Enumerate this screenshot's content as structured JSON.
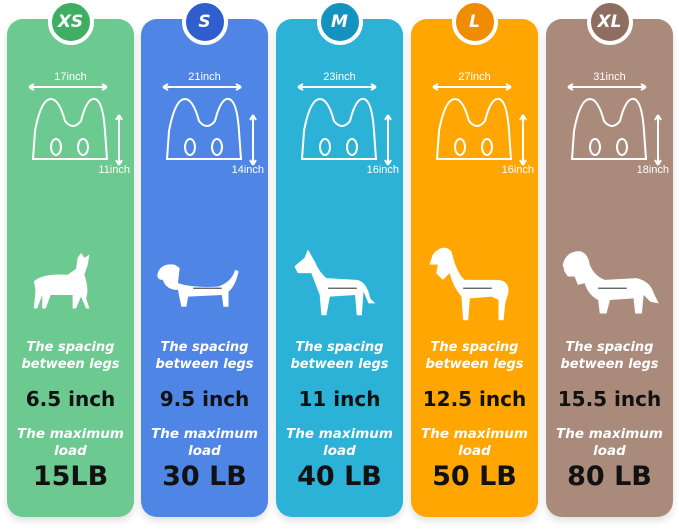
{
  "sizes": [
    {
      "size": "XS",
      "width": "17inch",
      "height": "11inch",
      "spacing_label": "The spacing between legs",
      "spacing": "6.5 inch",
      "load_label": "The maximum load",
      "load": "15LB",
      "color": "#6cc98f",
      "badge": "#3fae62",
      "animal": "cat"
    },
    {
      "size": "S",
      "width": "21inch",
      "height": "14inch",
      "spacing_label": "The spacing between legs",
      "spacing": "9.5 inch",
      "load_label": "The maximum load",
      "load": "30 LB",
      "color": "#4f86e6",
      "badge": "#2f5fcf",
      "animal": "dachshund"
    },
    {
      "size": "M",
      "width": "23inch",
      "height": "16inch",
      "spacing_label": "The spacing between legs",
      "spacing": "11 inch",
      "load_label": "The maximum load",
      "load": "40 LB",
      "color": "#2db2d7",
      "badge": "#1593c0",
      "animal": "medium-dog"
    },
    {
      "size": "L",
      "width": "27inch",
      "height": "16inch",
      "spacing_label": "The spacing between legs",
      "spacing": "12.5 inch",
      "load_label": "The maximum load",
      "load": "50 LB",
      "color": "#ffa602",
      "badge": "#f08c00",
      "animal": "large-dog"
    },
    {
      "size": "XL",
      "width": "31inch",
      "height": "18inch",
      "spacing_label": "The spacing between legs",
      "spacing": "15.5 inch",
      "load_label": "The maximum load",
      "load": "80 LB",
      "color": "#a98a7b",
      "badge": "#8d6e60",
      "animal": "retriever"
    }
  ]
}
